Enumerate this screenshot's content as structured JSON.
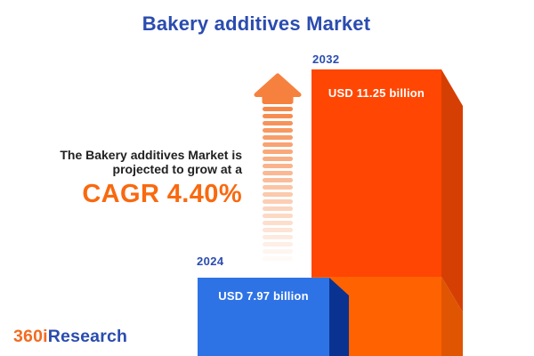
{
  "title": "Bakery additives Market",
  "headline": {
    "line1": "The Bakery additives Market is",
    "line2": "projected to grow at a",
    "cagr": "CAGR 4.40%"
  },
  "logo": {
    "prefix": "360i",
    "suffix": "Research"
  },
  "arrow": {
    "stripe_count": 22
  },
  "colors": {
    "title_blue": "#2a4caf",
    "text_dark": "#212121",
    "cagr_orange": "#f9690f",
    "logo_orange": "#f26b21",
    "logo_blue": "#2a4caf",
    "bar2024_front": "#2e73e5",
    "bar2024_side": "#0a3391",
    "bar2032_front_top": "#ff4603",
    "bar2032_front_bottom": "#ff6301",
    "bar2032_side_top": "#d63f03",
    "bar2032_side_bottom": "#e05501",
    "arrow_orange": "#f6813f"
  },
  "chart_data": {
    "type": "bar",
    "title": "Bakery additives Market",
    "unit": "USD billion",
    "categories": [
      "2024",
      "2032"
    ],
    "values": [
      7.97,
      11.25
    ],
    "value_labels": [
      "USD 7.97 billion",
      "USD 11.25 billion"
    ],
    "cagr_percent": 4.4,
    "cagr_label": "CAGR 4.40%",
    "orientation": "vertical",
    "legend": "none",
    "grid": "off"
  }
}
